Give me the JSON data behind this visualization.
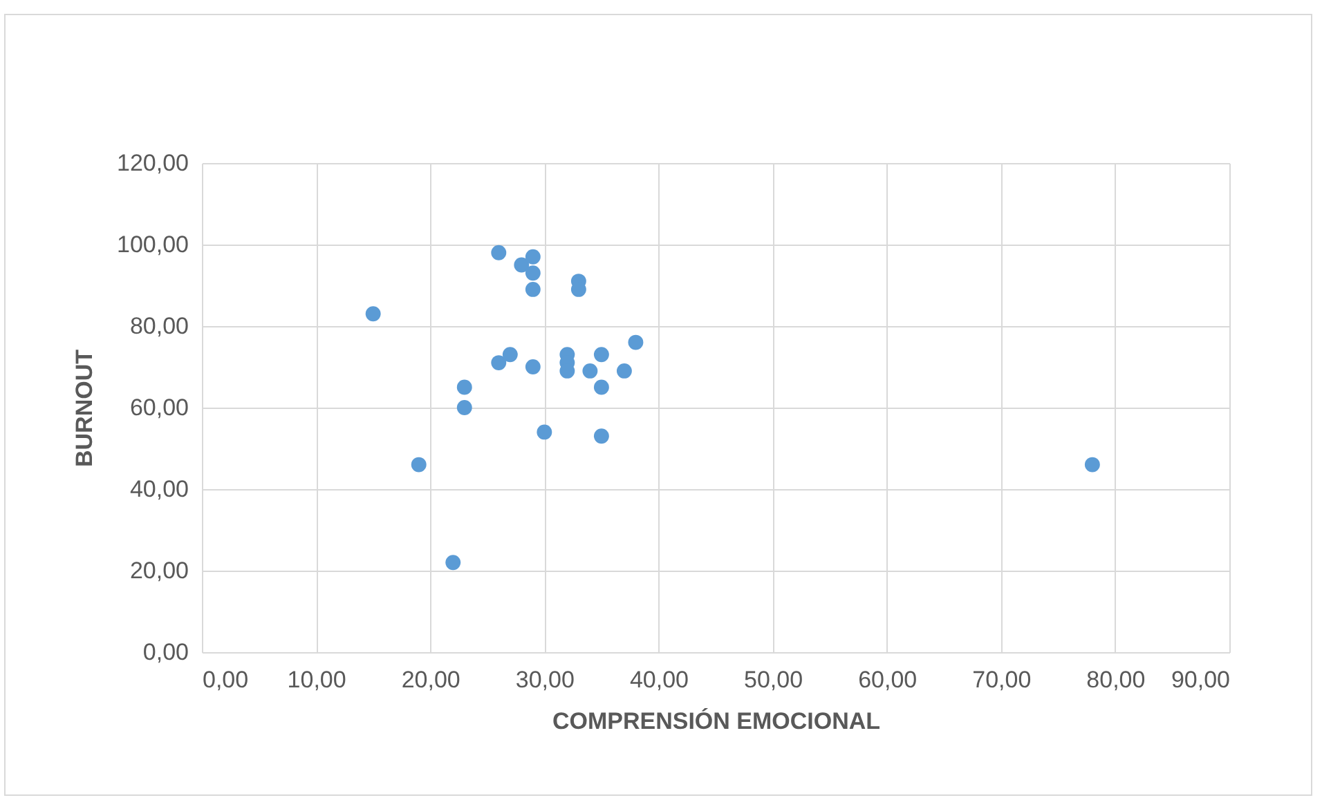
{
  "chart_data": {
    "type": "scatter",
    "xlabel": "COMPRENSIÓN EMOCIONAL",
    "ylabel": "BURNOUT",
    "x": [
      15,
      19,
      22,
      23,
      23,
      26,
      26,
      27,
      28,
      29,
      29,
      29,
      29,
      30,
      33,
      33,
      32,
      32,
      32,
      34,
      35,
      35,
      35,
      37,
      38,
      78
    ],
    "series": [
      {
        "color": "#5b9bd5",
        "values": [
          83,
          46,
          22,
          65,
          60,
          98,
          71,
          73,
          95,
          97,
          93,
          89,
          70,
          54,
          91,
          89,
          73,
          71,
          69,
          69,
          73,
          65,
          53,
          69,
          76,
          46
        ]
      }
    ],
    "xlim": [
      0,
      90
    ],
    "ylim": [
      0,
      120
    ],
    "xticks": [
      {
        "value": 0,
        "label": "0,00"
      },
      {
        "value": 10,
        "label": "10,00"
      },
      {
        "value": 20,
        "label": "20,00"
      },
      {
        "value": 30,
        "label": "30,00"
      },
      {
        "value": 40,
        "label": "40,00"
      },
      {
        "value": 50,
        "label": "50,00"
      },
      {
        "value": 60,
        "label": "60,00"
      },
      {
        "value": 70,
        "label": "70,00"
      },
      {
        "value": 80,
        "label": "80,00"
      },
      {
        "value": 90,
        "label": "90,00"
      }
    ],
    "yticks": [
      {
        "value": 0,
        "label": "0,00"
      },
      {
        "value": 20,
        "label": "20,00"
      },
      {
        "value": 40,
        "label": "40,00"
      },
      {
        "value": 60,
        "label": "60,00"
      },
      {
        "value": 80,
        "label": "80,00"
      },
      {
        "value": 100,
        "label": "100,00"
      },
      {
        "value": 120,
        "label": "120,00"
      }
    ],
    "grid": true,
    "marker": "circle"
  }
}
